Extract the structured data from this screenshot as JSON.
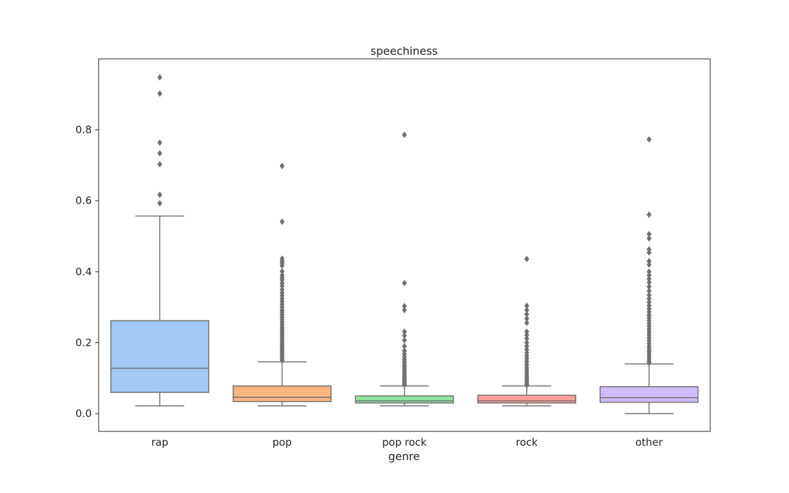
{
  "chart_data": {
    "type": "box",
    "title": "speechiness",
    "xlabel": "genre",
    "ylabel": "",
    "ylim": [
      -0.05,
      1.0
    ],
    "yticks": [
      "0.0",
      "0.2",
      "0.4",
      "0.6",
      "0.8"
    ],
    "ytick_values": [
      0.0,
      0.2,
      0.4,
      0.6,
      0.8
    ],
    "grid": false,
    "categories": [
      "rap",
      "pop",
      "pop rock",
      "rock",
      "other"
    ],
    "boxes": [
      {
        "category": "rap",
        "color": "#a1c9f4",
        "whisker_low": 0.022,
        "q1": 0.06,
        "median": 0.128,
        "q3": 0.262,
        "whisker_high": 0.557,
        "outliers": [
          0.948,
          0.902,
          0.764,
          0.734,
          0.703,
          0.617,
          0.593
        ]
      },
      {
        "category": "pop",
        "color": "#ffb482",
        "whisker_low": 0.022,
        "q1": 0.034,
        "median": 0.046,
        "q3": 0.078,
        "whisker_high": 0.146,
        "outliers": [
          0.698,
          0.541,
          0.437,
          0.43,
          0.424,
          0.417,
          0.401,
          0.39,
          0.383,
          0.377,
          0.368,
          0.36,
          0.35,
          0.341,
          0.333,
          0.324,
          0.316,
          0.308,
          0.3,
          0.292,
          0.286,
          0.279,
          0.272,
          0.265,
          0.258,
          0.251,
          0.244,
          0.238,
          0.232,
          0.226,
          0.22,
          0.214,
          0.208,
          0.202,
          0.196,
          0.19,
          0.185,
          0.18,
          0.175,
          0.17,
          0.165,
          0.16,
          0.155,
          0.15
        ]
      },
      {
        "category": "pop rock",
        "color": "#8de5a1",
        "whisker_low": 0.022,
        "q1": 0.03,
        "median": 0.036,
        "q3": 0.05,
        "whisker_high": 0.078,
        "outliers": [
          0.786,
          0.368,
          0.303,
          0.292,
          0.231,
          0.22,
          0.207,
          0.19,
          0.177,
          0.168,
          0.16,
          0.152,
          0.145,
          0.138,
          0.132,
          0.126,
          0.12,
          0.115,
          0.11,
          0.105,
          0.1,
          0.096,
          0.092,
          0.088,
          0.084,
          0.081
        ]
      },
      {
        "category": "rock",
        "color": "#ff9f9b",
        "whisker_low": 0.022,
        "q1": 0.03,
        "median": 0.036,
        "q3": 0.052,
        "whisker_high": 0.078,
        "outliers": [
          0.436,
          0.304,
          0.292,
          0.28,
          0.268,
          0.256,
          0.231,
          0.222,
          0.212,
          0.2,
          0.19,
          0.181,
          0.172,
          0.163,
          0.155,
          0.147,
          0.139,
          0.131,
          0.124,
          0.117,
          0.111,
          0.105,
          0.099,
          0.094,
          0.089,
          0.084,
          0.08
        ]
      },
      {
        "category": "other",
        "color": "#d0bbff",
        "whisker_low": 0.0,
        "q1": 0.032,
        "median": 0.045,
        "q3": 0.076,
        "whisker_high": 0.14,
        "outliers": [
          0.773,
          0.561,
          0.506,
          0.494,
          0.463,
          0.454,
          0.43,
          0.42,
          0.4,
          0.39,
          0.38,
          0.37,
          0.358,
          0.346,
          0.334,
          0.324,
          0.314,
          0.305,
          0.296,
          0.287,
          0.278,
          0.27,
          0.262,
          0.254,
          0.246,
          0.238,
          0.23,
          0.222,
          0.214,
          0.206,
          0.198,
          0.19,
          0.183,
          0.176,
          0.169,
          0.162,
          0.155,
          0.148,
          0.143
        ]
      }
    ],
    "colors": {
      "axis": "#222222",
      "box_edge": "#707070",
      "outlier": "#707070",
      "background": "#ffffff"
    }
  }
}
